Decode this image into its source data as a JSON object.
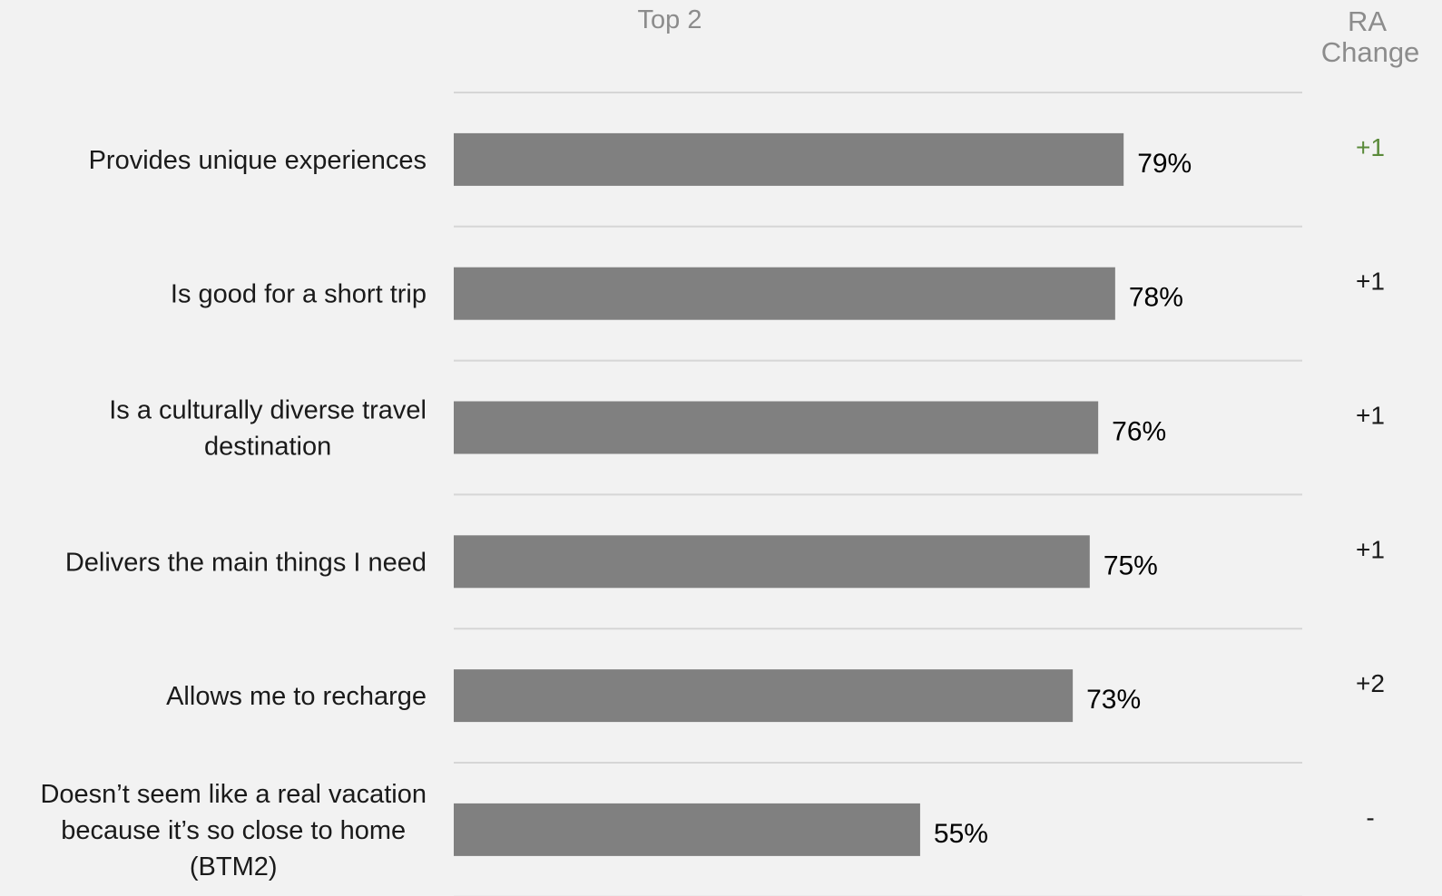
{
  "chart_data": {
    "type": "bar",
    "orientation": "horizontal",
    "column_headers": {
      "top2": "Top 2",
      "ra_change": [
        "RA",
        "Change"
      ]
    },
    "categories": [
      [
        "Provides unique experiences"
      ],
      [
        "Is good for a short trip"
      ],
      [
        "Is a culturally diverse travel",
        "destination"
      ],
      [
        "Delivers the main things I need"
      ],
      [
        "Allows me to recharge"
      ],
      [
        "Doesn’t seem like a real vacation",
        "because it’s so close to home",
        "(BTM2)"
      ]
    ],
    "values": [
      79,
      78,
      76,
      75,
      73,
      55
    ],
    "value_labels": [
      "79%",
      "78%",
      "76%",
      "75%",
      "73%",
      "55%"
    ],
    "ra_change": [
      "+1",
      "+1",
      "+1",
      "+1",
      "+2",
      "-"
    ],
    "ra_change_colors": [
      "#5a8a3a",
      "#1a1a1a",
      "#1a1a1a",
      "#1a1a1a",
      "#1a1a1a",
      "#1a1a1a"
    ],
    "bar_color": "#808080",
    "xlim": [
      0,
      100
    ],
    "grid": true
  }
}
